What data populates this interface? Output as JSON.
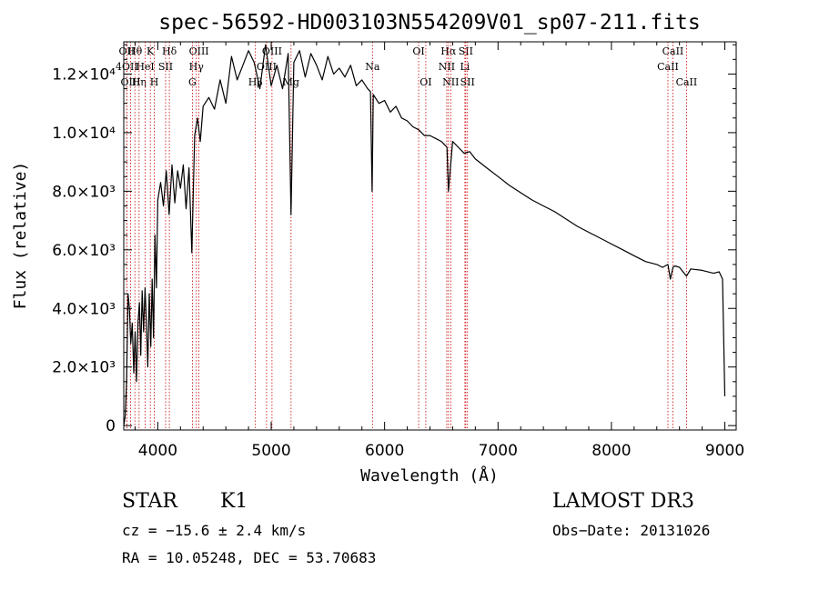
{
  "chart_data": {
    "type": "line",
    "title": "spec-56592-HD003103N554209V01_sp07-211.fits",
    "xlabel": "Wavelength (Å)",
    "ylabel": "Flux (relative)",
    "xlim": [
      3700,
      9100
    ],
    "ylim": [
      -150,
      13100
    ],
    "x_ticks": [
      4000,
      5000,
      6000,
      7000,
      8000,
      9000
    ],
    "y_ticks": [
      {
        "value": 0,
        "label": "0"
      },
      {
        "value": 2000,
        "label": "2.0×10³"
      },
      {
        "value": 4000,
        "label": "4.0×10³"
      },
      {
        "value": 6000,
        "label": "6.0×10³"
      },
      {
        "value": 8000,
        "label": "8.0×10³"
      },
      {
        "value": 10000,
        "label": "1.0×10⁴"
      },
      {
        "value": 12000,
        "label": "1.2×10⁴"
      }
    ],
    "series": [
      {
        "name": "flux",
        "x": [
          3700,
          3712,
          3725,
          3738,
          3750,
          3762,
          3775,
          3788,
          3800,
          3812,
          3825,
          3838,
          3850,
          3862,
          3875,
          3888,
          3900,
          3912,
          3925,
          3938,
          3950,
          3962,
          3975,
          3988,
          4000,
          4025,
          4050,
          4075,
          4100,
          4125,
          4150,
          4175,
          4200,
          4225,
          4250,
          4275,
          4300,
          4325,
          4350,
          4375,
          4400,
          4450,
          4500,
          4550,
          4600,
          4650,
          4700,
          4750,
          4800,
          4850,
          4900,
          4950,
          5000,
          5050,
          5100,
          5150,
          5175,
          5200,
          5250,
          5300,
          5350,
          5400,
          5450,
          5500,
          5550,
          5600,
          5650,
          5700,
          5750,
          5800,
          5850,
          5875,
          5890,
          5900,
          5950,
          6000,
          6050,
          6100,
          6150,
          6200,
          6250,
          6300,
          6350,
          6400,
          6450,
          6500,
          6550,
          6563,
          6600,
          6650,
          6700,
          6750,
          6800,
          6900,
          7000,
          7100,
          7200,
          7300,
          7400,
          7500,
          7600,
          7700,
          7800,
          7900,
          8000,
          8100,
          8200,
          8300,
          8400,
          8450,
          8498,
          8520,
          8542,
          8560,
          8600,
          8662,
          8700,
          8800,
          8900,
          8950,
          8980,
          9000
        ],
        "y": [
          0,
          300,
          1500,
          4500,
          4000,
          2800,
          3500,
          1800,
          3200,
          1500,
          3500,
          4200,
          2400,
          4600,
          3200,
          4700,
          3500,
          2000,
          4500,
          2700,
          5000,
          3000,
          6500,
          4700,
          7700,
          8300,
          7500,
          8700,
          7200,
          8900,
          7600,
          8700,
          8100,
          8900,
          7400,
          8800,
          5900,
          9900,
          10500,
          9700,
          10900,
          11200,
          10800,
          11800,
          11000,
          12600,
          11800,
          12300,
          12800,
          12400,
          11500,
          13000,
          11600,
          12300,
          11500,
          12700,
          7200,
          12400,
          12800,
          11900,
          12700,
          12300,
          11800,
          12600,
          12000,
          12200,
          11900,
          12300,
          11600,
          11800,
          11500,
          11400,
          8000,
          11300,
          11000,
          11100,
          10700,
          10900,
          10500,
          10400,
          10200,
          10100,
          9900,
          9900,
          9800,
          9700,
          9500,
          8000,
          9700,
          9500,
          9300,
          9350,
          9100,
          8800,
          8500,
          8200,
          7950,
          7700,
          7500,
          7300,
          7050,
          6800,
          6600,
          6400,
          6200,
          6000,
          5800,
          5600,
          5500,
          5400,
          5500,
          5000,
          5400,
          5450,
          5400,
          5100,
          5350,
          5300,
          5200,
          5250,
          5000,
          1000
        ]
      }
    ],
    "line_markers": [
      {
        "label": "Hθ",
        "x": 3798,
        "row": 0
      },
      {
        "label": "OII",
        "x": 3727,
        "row": 0
      },
      {
        "label": "4OII",
        "x": 3727,
        "row": 1
      },
      {
        "label": "OIII",
        "x": 3760,
        "row": 2
      },
      {
        "label": "Hη",
        "x": 3835,
        "row": 2
      },
      {
        "label": "K",
        "x": 3934,
        "row": 0
      },
      {
        "label": "HeI",
        "x": 3889,
        "row": 1
      },
      {
        "label": "SII",
        "x": 4069,
        "row": 1
      },
      {
        "label": "H",
        "x": 3969,
        "row": 2
      },
      {
        "label": "Hδ",
        "x": 4102,
        "row": 0
      },
      {
        "label": "OIII",
        "x": 4363,
        "row": 0
      },
      {
        "label": "Hγ",
        "x": 4340,
        "row": 1
      },
      {
        "label": "G",
        "x": 4305,
        "row": 2
      },
      {
        "label": "OIII",
        "x": 5007,
        "row": 0
      },
      {
        "label": "OIII",
        "x": 4959,
        "row": 1
      },
      {
        "label": "Hβ",
        "x": 4861,
        "row": 2
      },
      {
        "label": "Mg",
        "x": 5175,
        "row": 2
      },
      {
        "label": "Na",
        "x": 5893,
        "row": 1
      },
      {
        "label": "OI",
        "x": 6300,
        "row": 0
      },
      {
        "label": "OI",
        "x": 6363,
        "row": 2
      },
      {
        "label": "Hα",
        "x": 6563,
        "row": 0
      },
      {
        "label": "SII",
        "x": 6716,
        "row": 0
      },
      {
        "label": "NII",
        "x": 6548,
        "row": 1
      },
      {
        "label": "Li",
        "x": 6708,
        "row": 1
      },
      {
        "label": "NII",
        "x": 6583,
        "row": 2
      },
      {
        "label": "SII",
        "x": 6731,
        "row": 2
      },
      {
        "label": "CaII",
        "x": 8542,
        "row": 0
      },
      {
        "label": "CaII",
        "x": 8498,
        "row": 1
      },
      {
        "label": "CaII",
        "x": 8662,
        "row": 2
      }
    ]
  },
  "info": {
    "object_class": "STAR",
    "subclass": "K1",
    "survey": "LAMOST DR3",
    "redshift_line": "cz = −15.6 ± 2.4 km/s",
    "obs_date": "Obs−Date: 20131026",
    "coords_line": "RA =  10.05248, DEC =  53.70683"
  },
  "colors": {
    "spectrum": "#000000",
    "marker_line": "#cc0000",
    "axis": "#000000",
    "background": "#ffffff"
  }
}
